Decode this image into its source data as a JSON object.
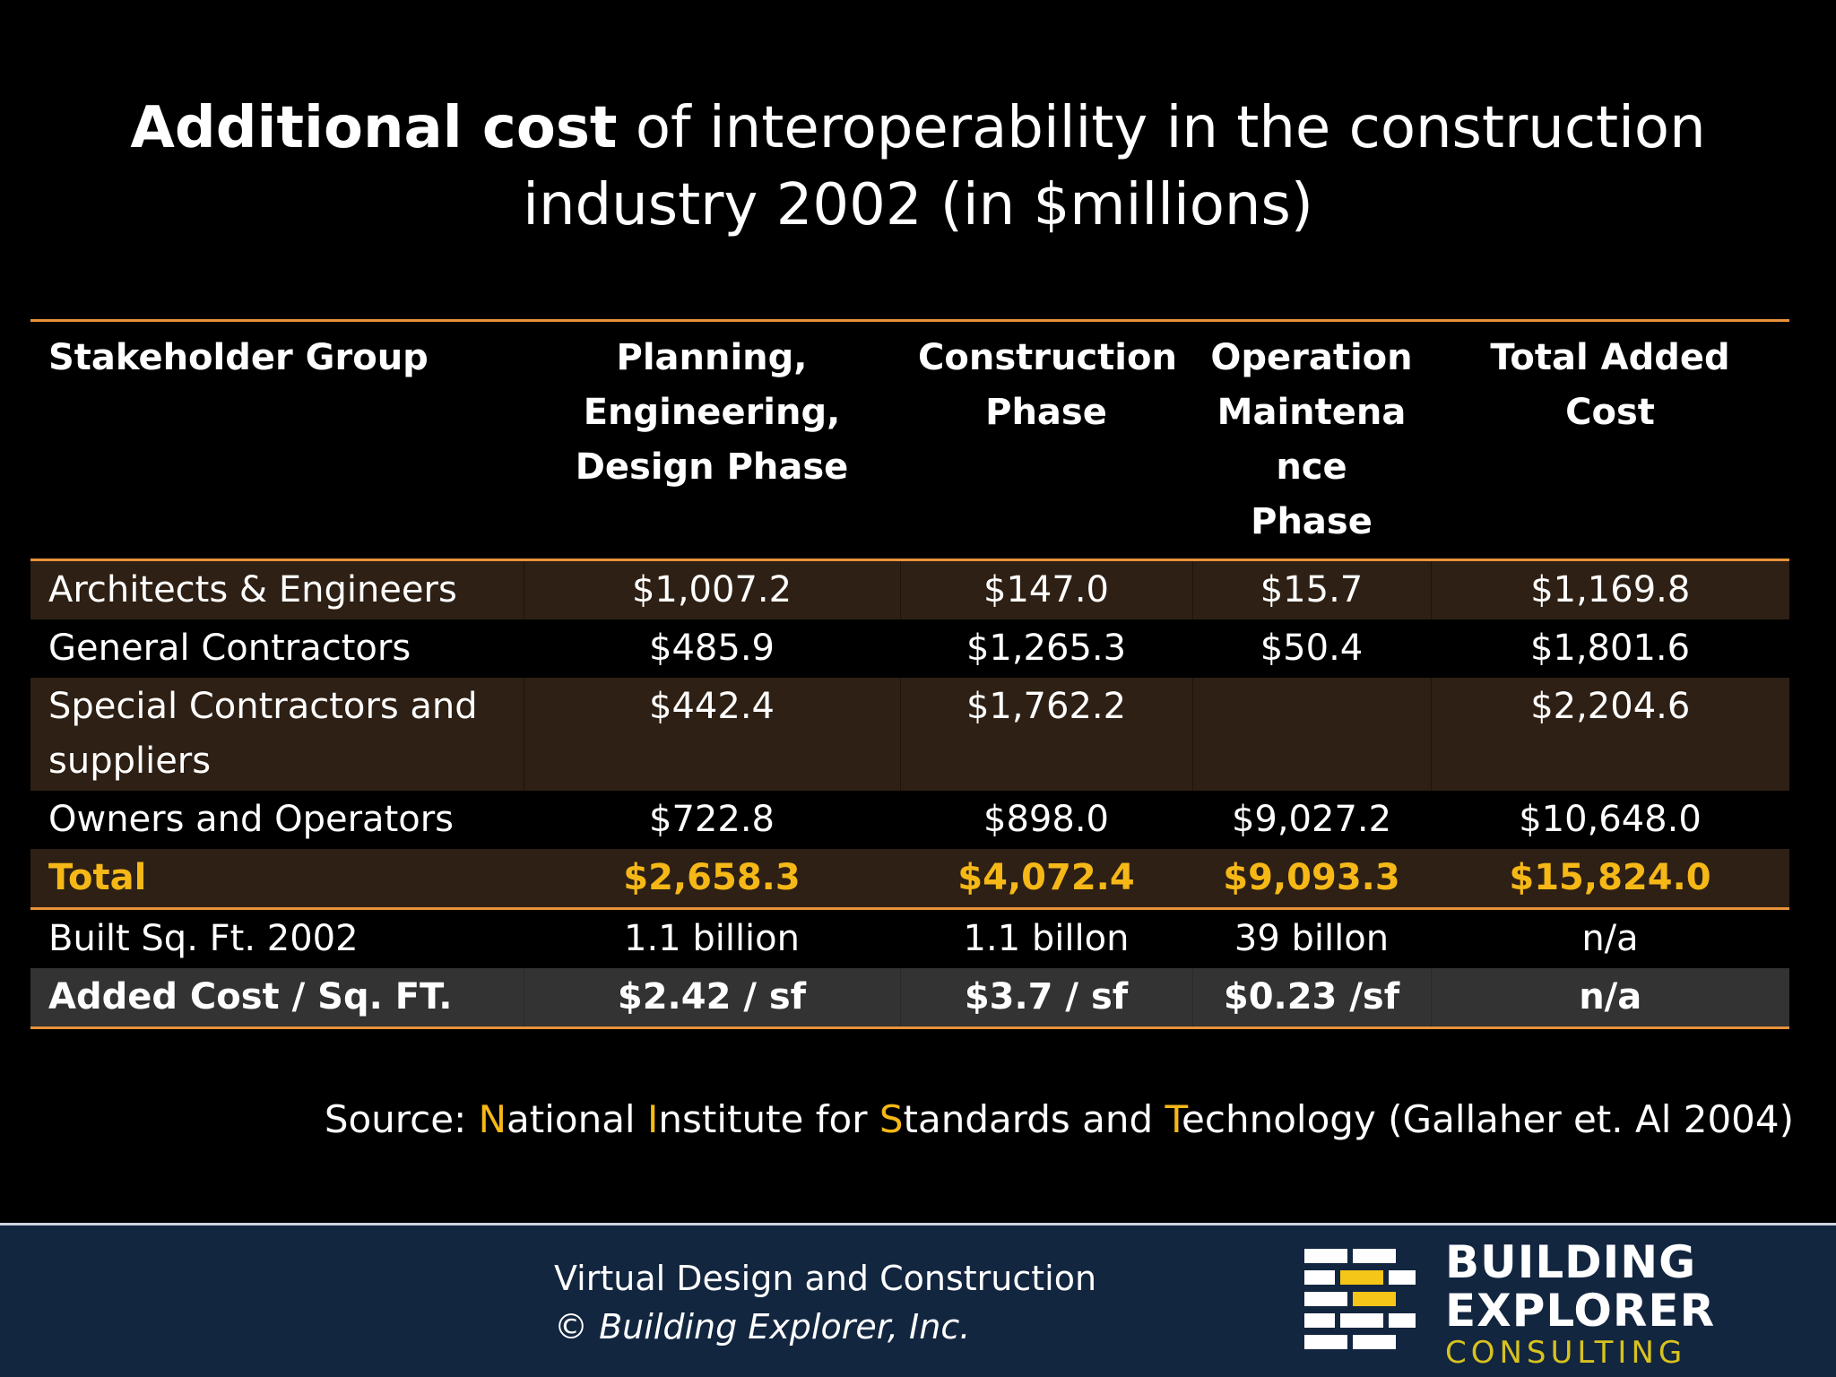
{
  "title": {
    "bold_part": "Additional cost",
    "rest_line1": " of interoperability in the construction",
    "line2": "industry 2002 (in $millions)"
  },
  "table": {
    "headers": {
      "stakeholder": "Stakeholder Group",
      "planning_l1": "Planning,",
      "planning_l2": "Engineering,",
      "planning_l3": "Design Phase",
      "construction_l1": "Construction",
      "construction_l2": "Phase",
      "operation_l1": "Operation",
      "operation_l2": "Maintena",
      "operation_l3": "nce Phase",
      "total": "Total Added Cost"
    },
    "rows": [
      {
        "group": "Architects & Engineers",
        "planning": "$1,007.2",
        "construction": "$147.0",
        "operation": "$15.7",
        "total": "$1,169.8"
      },
      {
        "group": "General Contractors",
        "planning": "$485.9",
        "construction": "$1,265.3",
        "operation": "$50.4",
        "total": "$1,801.6"
      },
      {
        "group_l1": "Special Contractors and",
        "group_l2": "suppliers",
        "planning": "$442.4",
        "construction": "$1,762.2",
        "operation": "",
        "total": "$2,204.6"
      },
      {
        "group": "Owners and Operators",
        "planning": "$722.8",
        "construction": "$898.0",
        "operation": "$9,027.2",
        "total": "$10,648.0"
      }
    ],
    "total_row": {
      "label": "Total",
      "planning": "$2,658.3",
      "construction": "$4,072.4",
      "operation": "$9,093.3",
      "total": "$15,824.0"
    },
    "sqft_row": {
      "label": "Built Sq. Ft. 2002",
      "planning": "1.1 billion",
      "construction": "1.1 billon",
      "operation": "39 billon",
      "total": "n/a"
    },
    "cost_row": {
      "label": "Added Cost / Sq. FT.",
      "planning": "$2.42 / sf",
      "construction": "$3.7 / sf",
      "operation": "$0.23 /sf",
      "total": "n/a"
    }
  },
  "source": {
    "prefix": "Source: ",
    "n": "N",
    "n_rest": "ational ",
    "i": "I",
    "i_rest": "nstitute for ",
    "s": "S",
    "s_rest": "tandards and ",
    "t": "T",
    "t_rest": "echnology (Gallaher et. Al 2004)"
  },
  "footer": {
    "line1": "Virtual Design and Construction",
    "line2": "© Building Explorer, Inc.",
    "logo_line1": "BUILDING",
    "logo_line2": "EXPLORER",
    "logo_line3": "CONSULTING"
  },
  "colors": {
    "accent_orange": "#e8923a",
    "highlight_gold": "#f5b817",
    "row_brown": "#2e2014",
    "footer_navy": "#132640",
    "logo_yellow": "#d8c21f"
  }
}
